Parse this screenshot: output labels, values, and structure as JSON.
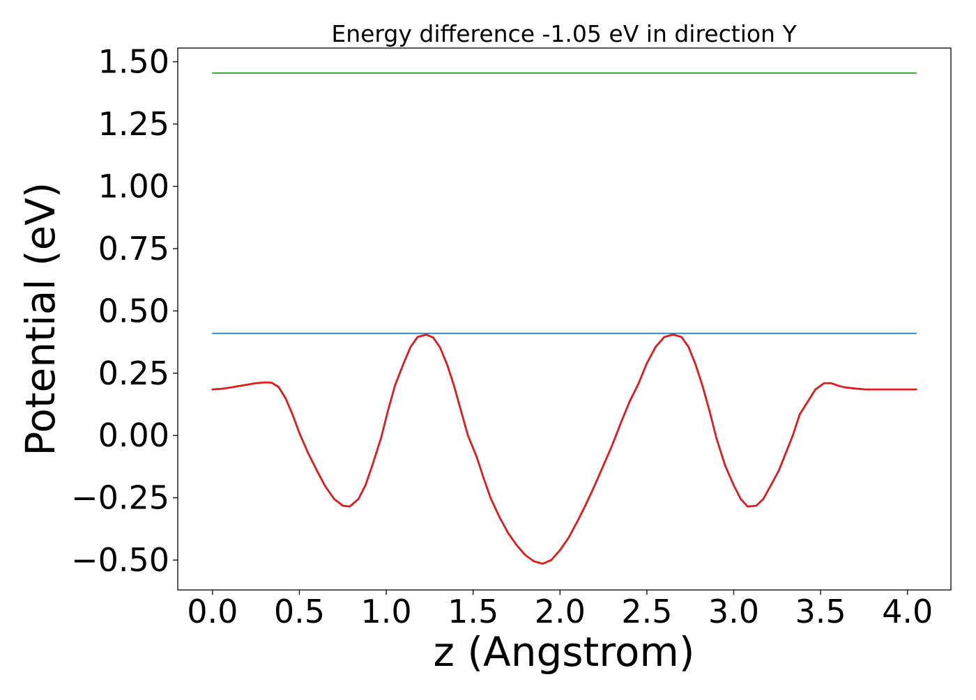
{
  "chart_data": {
    "type": "line",
    "title": "Energy difference -1.05 eV in direction Y",
    "xlabel": "z (Angstrom)",
    "ylabel": "Potential (eV)",
    "xlim": [
      -0.2,
      4.25
    ],
    "ylim": [
      -0.62,
      1.555
    ],
    "xticks": [
      0.0,
      0.5,
      1.0,
      1.5,
      2.0,
      2.5,
      3.0,
      3.5,
      4.0
    ],
    "xtick_labels": [
      "0.0",
      "0.5",
      "1.0",
      "1.5",
      "2.0",
      "2.5",
      "3.0",
      "3.5",
      "4.0"
    ],
    "yticks": [
      1.5,
      1.25,
      1.0,
      0.75,
      0.5,
      0.25,
      0.0,
      -0.25,
      -0.5
    ],
    "ytick_labels": [
      "1.50",
      "1.25",
      "1.00",
      "0.75",
      "0.50",
      "0.25",
      "0.00",
      "−0.25",
      "−0.50"
    ],
    "grid": false,
    "series": [
      {
        "color": "#2ca02c",
        "x": [
          0.0,
          4.05
        ],
        "y": [
          1.455,
          1.455
        ]
      },
      {
        "color": "#1f77b4",
        "x": [
          0.0,
          4.05
        ],
        "y": [
          0.41,
          0.41
        ]
      },
      {
        "color": "#e31a1c",
        "x": [
          0.0,
          0.05,
          0.1,
          0.15,
          0.2,
          0.25,
          0.3,
          0.34,
          0.38,
          0.42,
          0.46,
          0.5,
          0.55,
          0.6,
          0.65,
          0.7,
          0.75,
          0.79,
          0.84,
          0.88,
          0.92,
          0.97,
          1.01,
          1.05,
          1.1,
          1.14,
          1.18,
          1.23,
          1.27,
          1.31,
          1.35,
          1.39,
          1.43,
          1.47,
          1.52,
          1.56,
          1.6,
          1.65,
          1.7,
          1.75,
          1.8,
          1.85,
          1.9,
          1.95,
          2.0,
          2.05,
          2.1,
          2.15,
          2.2,
          2.25,
          2.3,
          2.35,
          2.4,
          2.45,
          2.5,
          2.55,
          2.6,
          2.65,
          2.7,
          2.74,
          2.78,
          2.82,
          2.86,
          2.9,
          2.95,
          3.0,
          3.04,
          3.08,
          3.13,
          3.17,
          3.21,
          3.26,
          3.3,
          3.34,
          3.38,
          3.43,
          3.47,
          3.52,
          3.56,
          3.6,
          3.64,
          3.68,
          3.72,
          3.76,
          3.8,
          3.85,
          3.9,
          3.95,
          4.0,
          4.05
        ],
        "y": [
          0.185,
          0.187,
          0.192,
          0.198,
          0.204,
          0.21,
          0.213,
          0.212,
          0.195,
          0.15,
          0.085,
          0.01,
          -0.07,
          -0.14,
          -0.205,
          -0.255,
          -0.282,
          -0.285,
          -0.255,
          -0.2,
          -0.12,
          -0.01,
          0.1,
          0.2,
          0.29,
          0.355,
          0.395,
          0.405,
          0.393,
          0.353,
          0.285,
          0.2,
          0.1,
          0.0,
          -0.085,
          -0.17,
          -0.25,
          -0.325,
          -0.39,
          -0.44,
          -0.48,
          -0.505,
          -0.515,
          -0.5,
          -0.46,
          -0.41,
          -0.345,
          -0.275,
          -0.2,
          -0.12,
          -0.04,
          0.05,
          0.135,
          0.205,
          0.29,
          0.355,
          0.395,
          0.405,
          0.395,
          0.355,
          0.285,
          0.2,
          0.1,
          -0.01,
          -0.12,
          -0.2,
          -0.255,
          -0.285,
          -0.282,
          -0.255,
          -0.205,
          -0.14,
          -0.07,
          0.0,
          0.085,
          0.14,
          0.185,
          0.21,
          0.21,
          0.2,
          0.193,
          0.19,
          0.187,
          0.185,
          0.185,
          0.185,
          0.185,
          0.185,
          0.185,
          0.185
        ]
      }
    ]
  }
}
